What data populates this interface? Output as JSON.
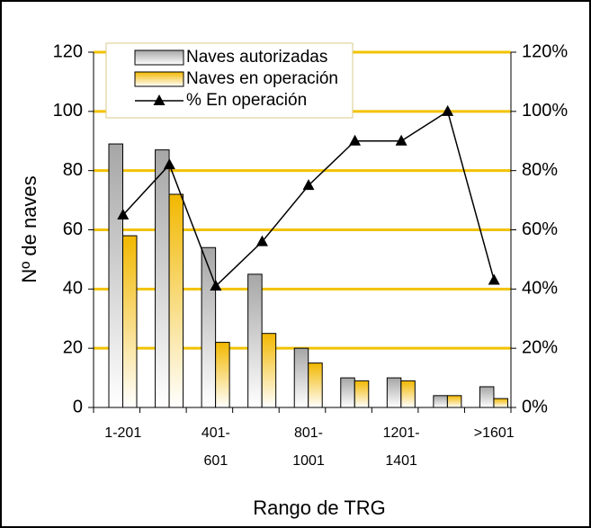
{
  "chart_data": {
    "type": "bar_line",
    "x_label": "Rango de TRG",
    "y_label": "Nº de naves",
    "categories": [
      "1-201",
      null,
      "401-\n601",
      null,
      "801-\n1001",
      null,
      "1201-\n1401",
      null,
      ">1601"
    ],
    "series": [
      {
        "name": "Naves autorizadas",
        "type": "bar",
        "color": "#a6a6a6",
        "values": [
          89,
          87,
          54,
          45,
          20,
          10,
          10,
          4,
          7
        ]
      },
      {
        "name": "Naves en operación",
        "type": "bar",
        "color": "#f2b800",
        "values": [
          58,
          72,
          22,
          25,
          15,
          9,
          9,
          4,
          3
        ]
      },
      {
        "name": "% En operación",
        "type": "line",
        "axis": "y2",
        "color": "#000000",
        "values": [
          65,
          82,
          41,
          56,
          75,
          90,
          90,
          100,
          43
        ]
      }
    ],
    "ylim": [
      0,
      120
    ],
    "yticks": [
      0,
      20,
      40,
      60,
      80,
      100,
      120
    ],
    "y2lim": [
      0,
      120
    ],
    "y2ticks": [
      {
        "value": 0,
        "label": "0%"
      },
      {
        "value": 20,
        "label": "20%"
      },
      {
        "value": 40,
        "label": "40%"
      },
      {
        "value": 60,
        "label": "60%"
      },
      {
        "value": 80,
        "label": "80%"
      },
      {
        "value": 100,
        "label": "100%"
      },
      {
        "value": 120,
        "label": "120%"
      }
    ],
    "grid": true,
    "grid_color": "#f2c200"
  }
}
